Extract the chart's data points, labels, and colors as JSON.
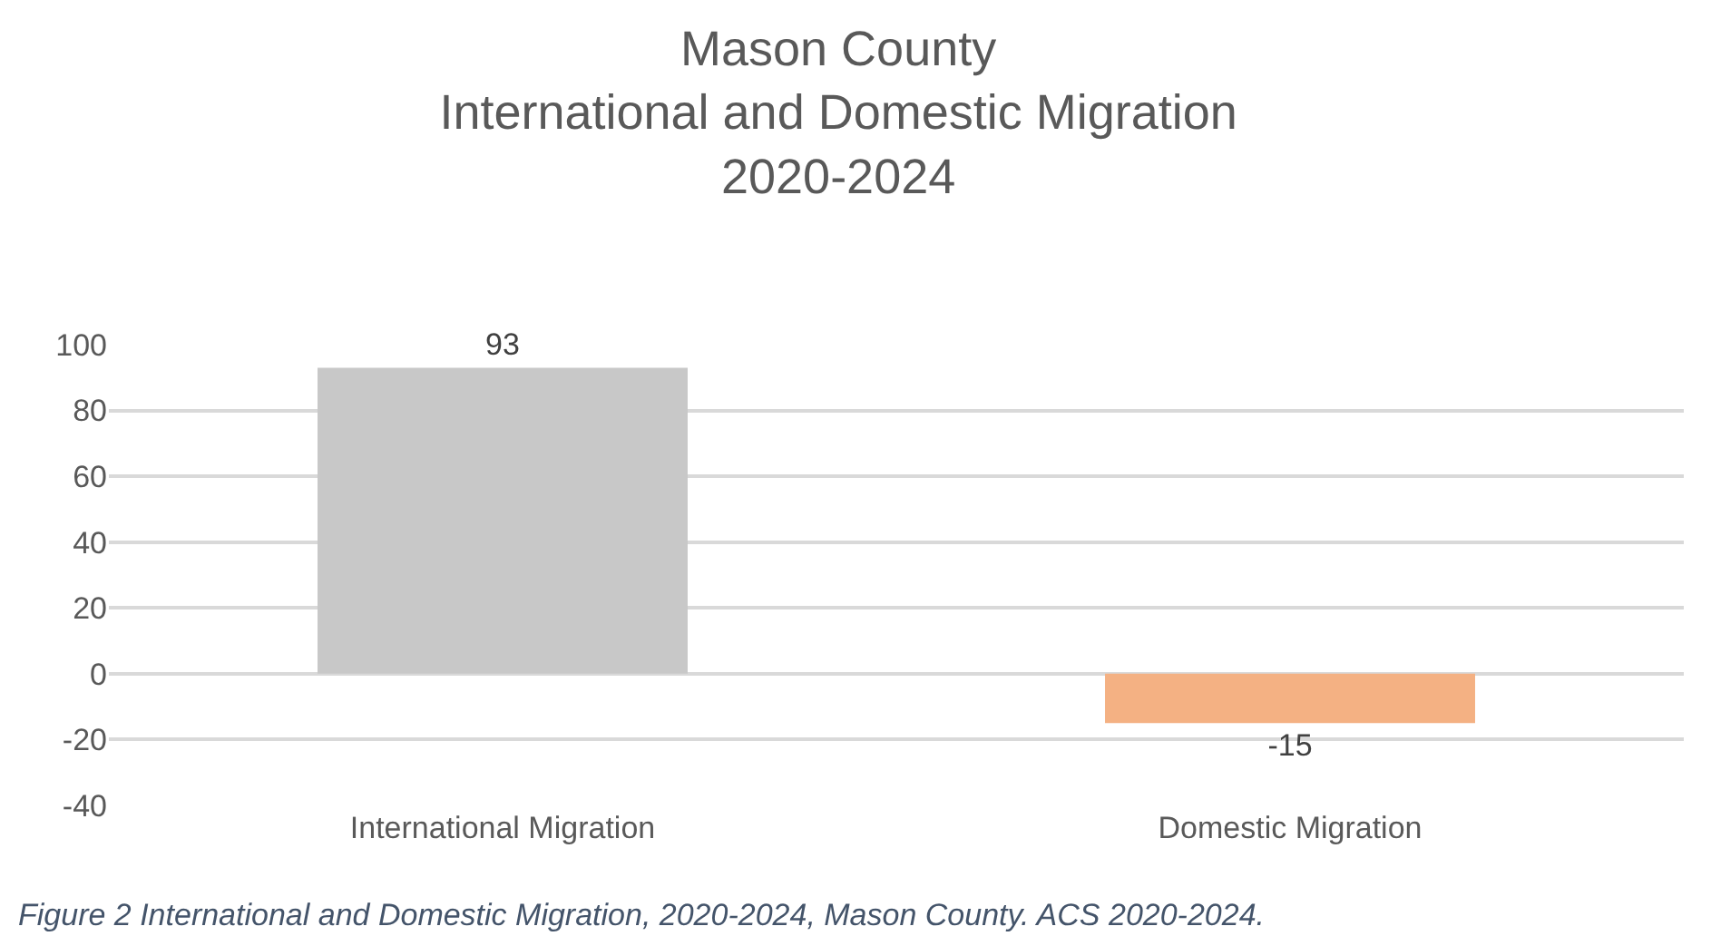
{
  "chart_data": {
    "type": "bar",
    "title": "Mason County\nInternational and Domestic Migration\n2020-2024",
    "categories": [
      "International Migration",
      "Domestic Migration"
    ],
    "values": [
      93,
      -15
    ],
    "colors": [
      "#c8c8c8",
      "#f4b183"
    ],
    "ylim": [
      -40,
      100
    ],
    "yticks": [
      -40,
      -20,
      0,
      20,
      40,
      60,
      80,
      100
    ],
    "grid": "y",
    "data_labels": true,
    "legend": false,
    "annotations": [
      "Figure 2 International and Domestic Migration, 2020-2024, Mason County. ACS 2020-2024."
    ]
  }
}
